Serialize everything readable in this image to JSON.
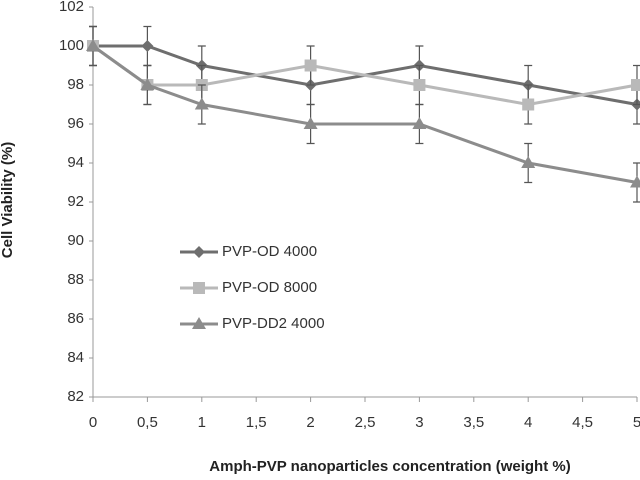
{
  "chart_data": {
    "type": "line",
    "x_label": "Amph-PVP nanoparticles concentration (weight %)",
    "y_label": "Cell Viability (%)",
    "x": [
      0,
      0.5,
      1,
      2,
      3,
      4,
      5
    ],
    "series": [
      {
        "name": "PVP-OD 4000",
        "color": "#6e6e6e",
        "marker": "diamond",
        "values": [
          100,
          100,
          99,
          98,
          99,
          98,
          97
        ],
        "errors": [
          1,
          1,
          1,
          1,
          1,
          1,
          1
        ]
      },
      {
        "name": "PVP-OD 8000",
        "color": "#b9b9b9",
        "marker": "square",
        "values": [
          100,
          98,
          98,
          99,
          98,
          97,
          98
        ],
        "errors": [
          1,
          1,
          1,
          1,
          1,
          1,
          1
        ]
      },
      {
        "name": "PVP-DD2 4000",
        "color": "#8c8c8c",
        "marker": "triangle",
        "values": [
          100,
          98,
          97,
          96,
          96,
          94,
          93
        ],
        "errors": [
          1,
          1,
          1,
          1,
          1,
          1,
          1
        ]
      }
    ],
    "xlim": [
      0,
      5
    ],
    "xticks": [
      0,
      {
        "value": 0.5,
        "label": "0,5"
      },
      1,
      {
        "value": 1.5,
        "label": "1,5"
      },
      2,
      {
        "value": 2.5,
        "label": "2,5"
      },
      3,
      {
        "value": 3.5,
        "label": "3,5"
      },
      4,
      {
        "value": 4.5,
        "label": "4,5"
      },
      5
    ],
    "ylim": [
      82,
      102
    ],
    "yticks": [
      82,
      84,
      86,
      88,
      90,
      92,
      94,
      96,
      98,
      100,
      102
    ],
    "grid": false
  }
}
